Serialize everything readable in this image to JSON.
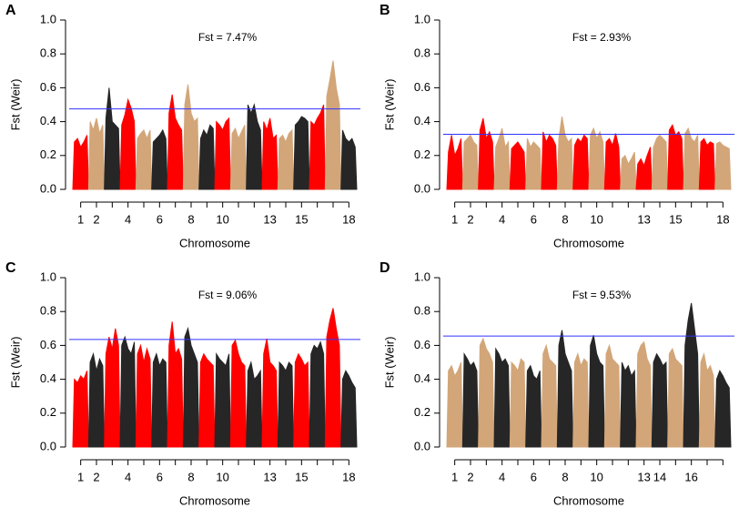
{
  "chart_data": [
    {
      "type": "manhattan",
      "panel_label": "A",
      "title": "Fst = 7.47%",
      "xlabel": "Chromosome",
      "ylabel": "Fst (Weir)",
      "ylim": [
        0,
        1
      ],
      "yticks": [
        {
          "value": 0,
          "label": "0.0"
        },
        0.2,
        0.4,
        0.6,
        0.8,
        {
          "value": 1,
          "label": "1.0"
        }
      ],
      "categories": [
        "1",
        "2",
        null,
        "4",
        null,
        "6",
        null,
        "8",
        null,
        "10",
        null,
        null,
        "13",
        null,
        "15",
        null,
        null,
        "18"
      ],
      "palette": [
        "#ff0000",
        "#d2a679",
        "#262626"
      ],
      "threshold": 0.475,
      "threshold_color": "#3333ff",
      "envelopes": [
        [
          0.28,
          0.3,
          0.25,
          0.28,
          0.32
        ],
        [
          0.4,
          0.35,
          0.42,
          0.33,
          0.38
        ],
        [
          0.42,
          0.6,
          0.4,
          0.38,
          0.36
        ],
        [
          0.38,
          0.44,
          0.53,
          0.48,
          0.4
        ],
        [
          0.3,
          0.33,
          0.35,
          0.3,
          0.35
        ],
        [
          0.28,
          0.3,
          0.32,
          0.35,
          0.3
        ],
        [
          0.45,
          0.56,
          0.42,
          0.38,
          0.35
        ],
        [
          0.5,
          0.62,
          0.45,
          0.4,
          0.42
        ],
        [
          0.3,
          0.35,
          0.32,
          0.38,
          0.36
        ],
        [
          0.4,
          0.38,
          0.35,
          0.4,
          0.42
        ],
        [
          0.33,
          0.36,
          0.3,
          0.34,
          0.38
        ],
        [
          0.5,
          0.45,
          0.5,
          0.4,
          0.35
        ],
        [
          0.4,
          0.35,
          0.42,
          0.3,
          0.32
        ],
        [
          0.3,
          0.32,
          0.28,
          0.33,
          0.35
        ],
        [
          0.38,
          0.4,
          0.43,
          0.42,
          0.4
        ],
        [
          0.4,
          0.38,
          0.42,
          0.45,
          0.5
        ],
        [
          0.55,
          0.65,
          0.76,
          0.6,
          0.5
        ],
        [
          0.35,
          0.3,
          0.28,
          0.3,
          0.25
        ]
      ]
    },
    {
      "type": "manhattan",
      "panel_label": "B",
      "title": "Fst = 2.93%",
      "xlabel": "Chromosome",
      "ylabel": "Fst (Weir)",
      "ylim": [
        0,
        1
      ],
      "yticks": [
        {
          "value": 0,
          "label": "0.0"
        },
        0.2,
        0.4,
        0.6,
        0.8,
        {
          "value": 1,
          "label": "1.0"
        }
      ],
      "categories": [
        "1",
        "2",
        null,
        "4",
        null,
        "6",
        null,
        "8",
        null,
        "10",
        null,
        null,
        "13",
        null,
        "15",
        null,
        null,
        "18"
      ],
      "palette": [
        "#ff0000",
        "#d2a679"
      ],
      "threshold": 0.325,
      "threshold_color": "#3333ff",
      "envelopes": [
        [
          0.22,
          0.32,
          0.2,
          0.24,
          0.3
        ],
        [
          0.28,
          0.3,
          0.32,
          0.28,
          0.26
        ],
        [
          0.35,
          0.42,
          0.3,
          0.34,
          0.28
        ],
        [
          0.25,
          0.3,
          0.36,
          0.25,
          0.28
        ],
        [
          0.24,
          0.26,
          0.28,
          0.25,
          0.22
        ],
        [
          0.3,
          0.25,
          0.28,
          0.26,
          0.24
        ],
        [
          0.34,
          0.28,
          0.32,
          0.3,
          0.26
        ],
        [
          0.3,
          0.43,
          0.32,
          0.28,
          0.3
        ],
        [
          0.26,
          0.3,
          0.28,
          0.32,
          0.3
        ],
        [
          0.32,
          0.36,
          0.3,
          0.34,
          0.28
        ],
        [
          0.28,
          0.3,
          0.26,
          0.33,
          0.25
        ],
        [
          0.18,
          0.2,
          0.15,
          0.18,
          0.22
        ],
        [
          0.15,
          0.18,
          0.14,
          0.2,
          0.25
        ],
        [
          0.25,
          0.3,
          0.32,
          0.3,
          0.28
        ],
        [
          0.35,
          0.38,
          0.32,
          0.34,
          0.3
        ],
        [
          0.33,
          0.36,
          0.3,
          0.28,
          0.32
        ],
        [
          0.28,
          0.3,
          0.26,
          0.28,
          0.27
        ],
        [
          0.27,
          0.28,
          0.26,
          0.25,
          0.24
        ]
      ]
    },
    {
      "type": "manhattan",
      "panel_label": "C",
      "title": "Fst = 9.06%",
      "xlabel": "Chromosome",
      "ylabel": "Fst (Weir)",
      "ylim": [
        0,
        1
      ],
      "yticks": [
        {
          "value": 0,
          "label": "0.0"
        },
        0.2,
        0.4,
        0.6,
        0.8,
        {
          "value": 1,
          "label": "1.0"
        }
      ],
      "categories": [
        "1",
        "2",
        null,
        "4",
        null,
        "6",
        null,
        "8",
        null,
        "10",
        null,
        null,
        "13",
        null,
        "15",
        null,
        null,
        "18"
      ],
      "palette": [
        "#ff0000",
        "#262626"
      ],
      "threshold": 0.635,
      "threshold_color": "#3333ff",
      "envelopes": [
        [
          0.4,
          0.38,
          0.42,
          0.4,
          0.45
        ],
        [
          0.5,
          0.55,
          0.45,
          0.52,
          0.48
        ],
        [
          0.55,
          0.65,
          0.58,
          0.7,
          0.6
        ],
        [
          0.6,
          0.65,
          0.58,
          0.55,
          0.62
        ],
        [
          0.55,
          0.6,
          0.5,
          0.58,
          0.52
        ],
        [
          0.5,
          0.55,
          0.48,
          0.52,
          0.5
        ],
        [
          0.6,
          0.74,
          0.55,
          0.58,
          0.52
        ],
        [
          0.65,
          0.7,
          0.6,
          0.55,
          0.5
        ],
        [
          0.5,
          0.55,
          0.52,
          0.5,
          0.48
        ],
        [
          0.55,
          0.52,
          0.5,
          0.48,
          0.55
        ],
        [
          0.6,
          0.63,
          0.55,
          0.5,
          0.48
        ],
        [
          0.45,
          0.5,
          0.4,
          0.42,
          0.45
        ],
        [
          0.55,
          0.64,
          0.5,
          0.48,
          0.45
        ],
        [
          0.5,
          0.48,
          0.45,
          0.5,
          0.48
        ],
        [
          0.5,
          0.55,
          0.52,
          0.48,
          0.5
        ],
        [
          0.55,
          0.6,
          0.58,
          0.62,
          0.55
        ],
        [
          0.65,
          0.75,
          0.82,
          0.7,
          0.6
        ],
        [
          0.4,
          0.45,
          0.42,
          0.38,
          0.35
        ]
      ]
    },
    {
      "type": "manhattan",
      "panel_label": "D",
      "title": "Fst = 9.53%",
      "xlabel": "Chromosome",
      "ylabel": "Fst (Weir)",
      "ylim": [
        0,
        1
      ],
      "yticks": [
        {
          "value": 0,
          "label": "0.0"
        },
        0.2,
        0.4,
        0.6,
        0.8,
        {
          "value": 1,
          "label": "1.0"
        }
      ],
      "categories": [
        "1",
        "2",
        null,
        "4",
        null,
        "6",
        null,
        "8",
        null,
        "10",
        null,
        null,
        "13",
        "14",
        null,
        "16",
        null,
        null
      ],
      "palette": [
        "#d2a679",
        "#262626"
      ],
      "threshold": 0.655,
      "threshold_color": "#3333ff",
      "envelopes": [
        [
          0.45,
          0.48,
          0.42,
          0.45,
          0.5
        ],
        [
          0.55,
          0.52,
          0.48,
          0.5,
          0.45
        ],
        [
          0.6,
          0.64,
          0.58,
          0.55,
          0.5
        ],
        [
          0.58,
          0.55,
          0.5,
          0.52,
          0.48
        ],
        [
          0.5,
          0.48,
          0.45,
          0.52,
          0.5
        ],
        [
          0.45,
          0.48,
          0.42,
          0.4,
          0.45
        ],
        [
          0.55,
          0.6,
          0.52,
          0.5,
          0.48
        ],
        [
          0.6,
          0.69,
          0.55,
          0.5,
          0.45
        ],
        [
          0.5,
          0.55,
          0.48,
          0.52,
          0.5
        ],
        [
          0.6,
          0.66,
          0.55,
          0.5,
          0.48
        ],
        [
          0.55,
          0.6,
          0.52,
          0.5,
          0.48
        ],
        [
          0.5,
          0.45,
          0.48,
          0.42,
          0.45
        ],
        [
          0.55,
          0.6,
          0.62,
          0.52,
          0.48
        ],
        [
          0.5,
          0.55,
          0.52,
          0.48,
          0.5
        ],
        [
          0.55,
          0.58,
          0.52,
          0.5,
          0.48
        ],
        [
          0.6,
          0.75,
          0.85,
          0.7,
          0.55
        ],
        [
          0.5,
          0.55,
          0.45,
          0.48,
          0.42
        ],
        [
          0.4,
          0.45,
          0.42,
          0.38,
          0.35
        ]
      ]
    }
  ]
}
